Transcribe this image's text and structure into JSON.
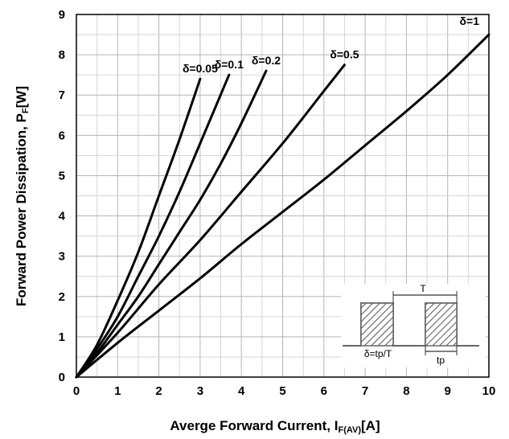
{
  "chart_data": {
    "type": "line",
    "xlabel": "Averge Forward Current, I",
    "xlabel_sub": "F(AV)",
    "xlabel_unit": "[A]",
    "ylabel": "Forward Power Dissipation, P",
    "ylabel_sub": "F",
    "ylabel_unit": "[W]",
    "xlim": [
      0,
      10
    ],
    "ylim": [
      0,
      9
    ],
    "xticks": [
      0,
      1,
      2,
      3,
      4,
      5,
      6,
      7,
      8,
      9,
      10
    ],
    "yticks": [
      0,
      1,
      2,
      3,
      4,
      5,
      6,
      7,
      8,
      9
    ],
    "grid": true,
    "series": [
      {
        "name": "δ=0.05",
        "x": [
          0,
          0.5,
          1,
          1.5,
          2,
          2.5,
          3
        ],
        "y": [
          0,
          0.8,
          1.9,
          3.1,
          4.5,
          5.9,
          7.4
        ]
      },
      {
        "name": "δ=0.1",
        "x": [
          0,
          0.5,
          1,
          1.5,
          2,
          2.5,
          3,
          3.7
        ],
        "y": [
          0,
          0.7,
          1.5,
          2.5,
          3.5,
          4.6,
          5.8,
          7.5
        ]
      },
      {
        "name": "δ=0.2",
        "x": [
          0,
          0.5,
          1,
          1.5,
          2,
          2.5,
          3,
          3.5,
          4,
          4.6
        ],
        "y": [
          0,
          0.6,
          1.3,
          2.0,
          2.8,
          3.6,
          4.4,
          5.3,
          6.3,
          7.6
        ]
      },
      {
        "name": "δ=0.5",
        "x": [
          0,
          1,
          2,
          3,
          4,
          5,
          6,
          6.5
        ],
        "y": [
          0,
          1.1,
          2.3,
          3.4,
          4.6,
          5.8,
          7.1,
          7.75
        ]
      },
      {
        "name": "δ=1",
        "x": [
          0,
          1,
          2,
          3,
          4,
          5,
          6,
          7,
          8,
          9,
          10
        ],
        "y": [
          0,
          0.85,
          1.65,
          2.45,
          3.3,
          4.1,
          4.9,
          5.75,
          6.6,
          7.5,
          8.5
        ]
      }
    ],
    "inset": {
      "period_label": "T",
      "pulse_label": "tp",
      "duty_label": "δ=tp/T"
    }
  }
}
